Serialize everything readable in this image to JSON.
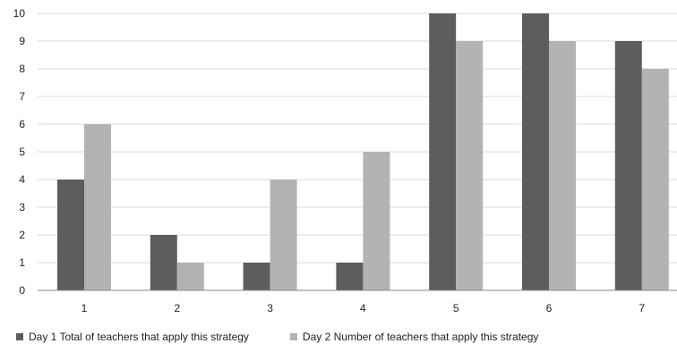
{
  "chart_data": {
    "type": "bar",
    "categories": [
      "1",
      "2",
      "3",
      "4",
      "5",
      "6",
      "7"
    ],
    "series": [
      {
        "name": "Day 1 Total of teachers that apply this strategy",
        "values": [
          4,
          2,
          1,
          1,
          10,
          10,
          9
        ],
        "color": "#5d5d5d"
      },
      {
        "name": "Day 2 Number of teachers that apply this strategy",
        "values": [
          6,
          1,
          4,
          5,
          9,
          9,
          8
        ],
        "color": "#b3b3b3"
      }
    ],
    "y_ticks": [
      "0",
      "1",
      "2",
      "3",
      "4",
      "5",
      "6",
      "7",
      "8",
      "9",
      "10"
    ],
    "ylim": [
      0,
      10
    ],
    "grid": true,
    "legend_position": "bottom-left",
    "gridline_color": "#d9d9d9",
    "axis_color": "#888888"
  }
}
